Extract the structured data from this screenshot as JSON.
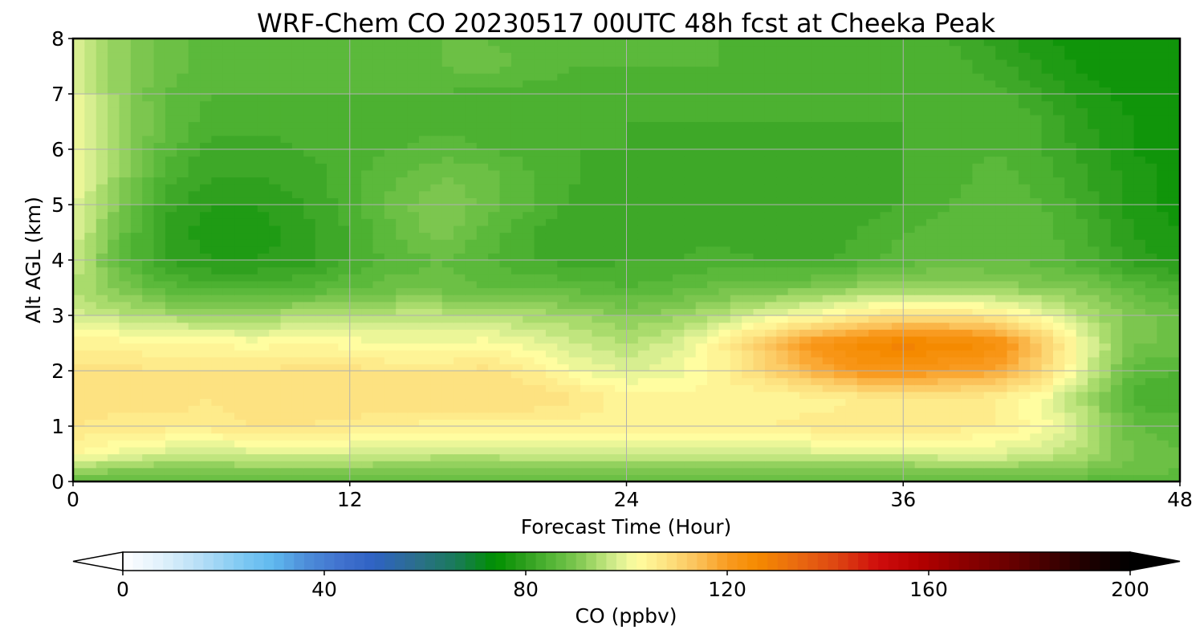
{
  "chart_data": {
    "type": "heatmap",
    "title": "WRF-Chem CO  20230517 00UTC 48h fcst at Cheeka Peak",
    "xlabel": "Forecast Time (Hour)",
    "ylabel": "Alt AGL (km)",
    "xlim": [
      0,
      48
    ],
    "ylim": [
      0,
      8
    ],
    "xticks": [
      "0",
      "12",
      "24",
      "36",
      "48"
    ],
    "yticks": [
      "0",
      "1",
      "2",
      "3",
      "4",
      "5",
      "6",
      "7",
      "8"
    ],
    "grid": true,
    "colorbar": {
      "label": "CO  (ppbv)",
      "range": [
        0,
        200
      ],
      "ticks": [
        "0",
        "40",
        "80",
        "120",
        "160",
        "200"
      ],
      "orientation": "horizontal",
      "extend": "both",
      "colors": [
        "#ffffff",
        "#dff0fb",
        "#b2ddf6",
        "#7cc8f3",
        "#5fb8ee",
        "#4e8fd9",
        "#3f6fcd",
        "#2e62c3",
        "#2c6e8e",
        "#1a7a5a",
        "#009000",
        "#2fa01e",
        "#5bb93b",
        "#7cc64f",
        "#a9db6c",
        "#d7ee90",
        "#fffda0",
        "#fde281",
        "#fbc25a",
        "#f99b20",
        "#f58a00",
        "#ea6a10",
        "#dd4412",
        "#cf0c0c",
        "#b50000",
        "#900000",
        "#6a0000",
        "#420000",
        "#1c0000",
        "#000000"
      ],
      "color_stops": [
        0,
        8,
        16,
        24,
        30,
        36,
        44,
        50,
        58,
        66,
        74,
        80,
        86,
        90,
        94,
        98,
        102,
        108,
        114,
        120,
        126,
        134,
        142,
        150,
        158,
        166,
        176,
        184,
        192,
        200
      ]
    },
    "x": [
      0,
      2,
      4,
      6,
      8,
      10,
      12,
      14,
      16,
      18,
      20,
      22,
      24,
      26,
      28,
      30,
      32,
      34,
      36,
      38,
      40,
      42,
      44,
      46,
      48
    ],
    "y": [
      0,
      0.25,
      0.5,
      1,
      1.5,
      2,
      2.5,
      3,
      3.5,
      4,
      4.5,
      5,
      5.5,
      6,
      6.5,
      7,
      7.5,
      8
    ],
    "z": [
      [
        86,
        86,
        86,
        86,
        86,
        86,
        86,
        86,
        86,
        86,
        86,
        86,
        86,
        86,
        86,
        86,
        86,
        86,
        86,
        86,
        86,
        86,
        86,
        86,
        86
      ],
      [
        94,
        92,
        91,
        91,
        92,
        92,
        92,
        91,
        91,
        91,
        91,
        91,
        91,
        91,
        91,
        91,
        91,
        91,
        91,
        92,
        92,
        91,
        90,
        88,
        87
      ],
      [
        103,
        100,
        98,
        97,
        98,
        98,
        98,
        97,
        96,
        96,
        97,
        98,
        98,
        98,
        98,
        98,
        98,
        98,
        98,
        99,
        99,
        97,
        94,
        89,
        87
      ],
      [
        107,
        106,
        106,
        106,
        107,
        107,
        106,
        105,
        104,
        104,
        104,
        104,
        104,
        105,
        105,
        105,
        106,
        106,
        106,
        106,
        105,
        102,
        96,
        87,
        86
      ],
      [
        109,
        108,
        108,
        107,
        108,
        109,
        109,
        109,
        109,
        109,
        109,
        107,
        104,
        104,
        103,
        103,
        104,
        105,
        106,
        106,
        105,
        101,
        93,
        84,
        83
      ],
      [
        108,
        108,
        107,
        107,
        107,
        108,
        108,
        107,
        107,
        108,
        105,
        101,
        99,
        100,
        104,
        110,
        116,
        121,
        122,
        120,
        118,
        110,
        98,
        86,
        85
      ],
      [
        104,
        104,
        103,
        103,
        102,
        103,
        102,
        101,
        101,
        102,
        100,
        97,
        95,
        98,
        104,
        113,
        121,
        126,
        128,
        127,
        125,
        113,
        99,
        89,
        89
      ],
      [
        98,
        96,
        94,
        93,
        93,
        95,
        96,
        96,
        96,
        95,
        94,
        93,
        91,
        92,
        95,
        99,
        102,
        106,
        108,
        108,
        106,
        101,
        94,
        90,
        88
      ],
      [
        95,
        90,
        86,
        84,
        84,
        85,
        87,
        88,
        88,
        87,
        87,
        86,
        85,
        86,
        88,
        89,
        90,
        92,
        93,
        93,
        92,
        91,
        90,
        86,
        84
      ],
      [
        97,
        87,
        81,
        79,
        79,
        80,
        83,
        86,
        87,
        85,
        83,
        82,
        83,
        83,
        84,
        83,
        82,
        84,
        86,
        87,
        87,
        86,
        84,
        80,
        78
      ],
      [
        99,
        88,
        80,
        78,
        78,
        80,
        83,
        87,
        90,
        86,
        83,
        81,
        82,
        82,
        82,
        81,
        81,
        83,
        85,
        86,
        87,
        86,
        83,
        79,
        77
      ],
      [
        100,
        90,
        82,
        79,
        79,
        81,
        84,
        88,
        91,
        88,
        85,
        82,
        81,
        82,
        82,
        82,
        82,
        82,
        83,
        85,
        87,
        85,
        82,
        78,
        76
      ],
      [
        101,
        92,
        84,
        81,
        81,
        82,
        84,
        87,
        89,
        88,
        85,
        83,
        82,
        82,
        82,
        82,
        82,
        82,
        83,
        84,
        86,
        84,
        81,
        78,
        76
      ],
      [
        101,
        93,
        86,
        82,
        82,
        83,
        84,
        85,
        86,
        85,
        84,
        83,
        83,
        82,
        82,
        82,
        82,
        82,
        83,
        84,
        85,
        83,
        80,
        77,
        76
      ],
      [
        100,
        93,
        87,
        84,
        84,
        84,
        84,
        84,
        84,
        84,
        84,
        83,
        83,
        83,
        83,
        83,
        83,
        83,
        83,
        84,
        85,
        83,
        79,
        77,
        76
      ],
      [
        100,
        92,
        87,
        85,
        85,
        85,
        85,
        85,
        85,
        84,
        84,
        84,
        84,
        84,
        84,
        84,
        84,
        84,
        84,
        85,
        84,
        81,
        78,
        76,
        76
      ],
      [
        99,
        92,
        88,
        86,
        86,
        86,
        86,
        86,
        87,
        88,
        86,
        85,
        85,
        85,
        85,
        84,
        84,
        84,
        85,
        84,
        82,
        79,
        76,
        75,
        75
      ],
      [
        98,
        92,
        88,
        86,
        86,
        86,
        86,
        86,
        87,
        87,
        86,
        85,
        85,
        85,
        85,
        85,
        85,
        85,
        85,
        83,
        80,
        77,
        76,
        75,
        75
      ]
    ]
  }
}
